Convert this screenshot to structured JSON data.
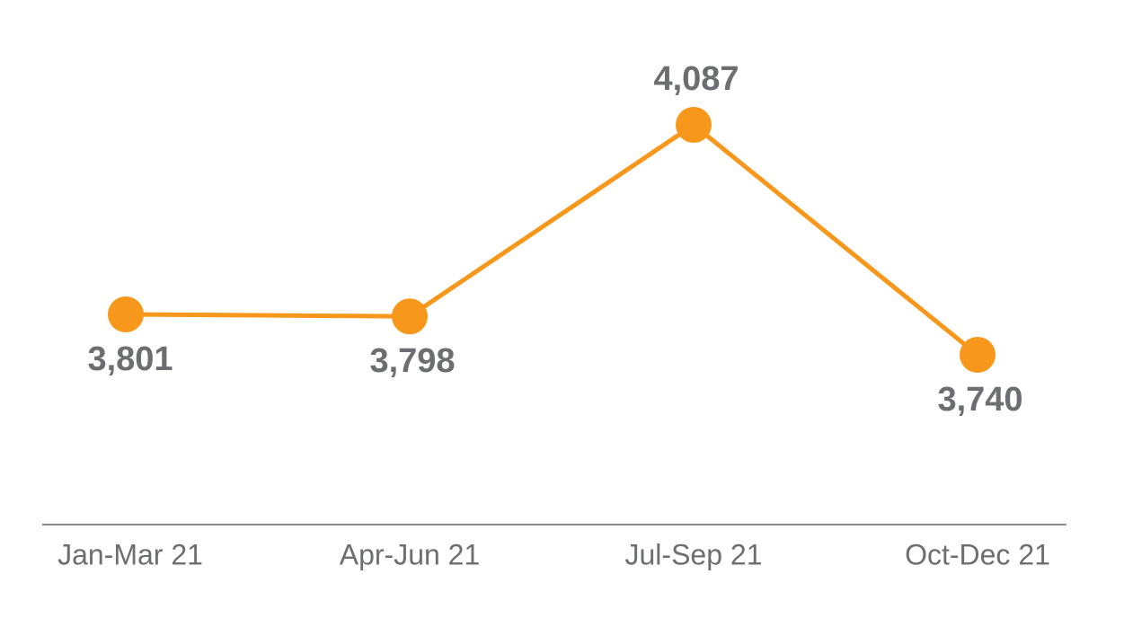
{
  "chart_data": {
    "type": "line",
    "categories": [
      "Jan-Mar 21",
      "Apr-Jun 21",
      "Jul-Sep 21",
      "Oct-Dec 21"
    ],
    "values": [
      3801,
      3798,
      4087,
      3740
    ],
    "value_labels": [
      "3,801",
      "3,798",
      "4,087",
      "3,740"
    ],
    "color": "#f7981d"
  }
}
